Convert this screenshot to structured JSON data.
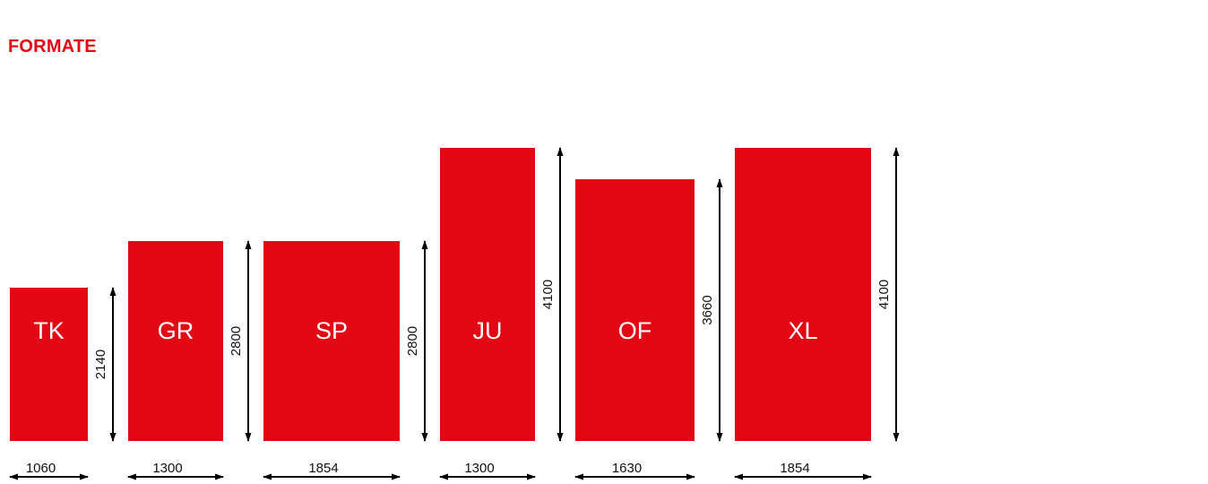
{
  "title": "FORMATE",
  "colors": {
    "accent": "#e30613",
    "rect_fill": "#e30613",
    "label_text": "#ffffff",
    "arrow": "#000000"
  },
  "formats": [
    {
      "code": "TK",
      "width": 1060,
      "height": 2140
    },
    {
      "code": "GR",
      "width": 1300,
      "height": 2800
    },
    {
      "code": "SP",
      "width": 1854,
      "height": 2800
    },
    {
      "code": "JU",
      "width": 1300,
      "height": 4100
    },
    {
      "code": "OF",
      "width": 1630,
      "height": 3660
    },
    {
      "code": "XL",
      "width": 1854,
      "height": 4100
    }
  ]
}
